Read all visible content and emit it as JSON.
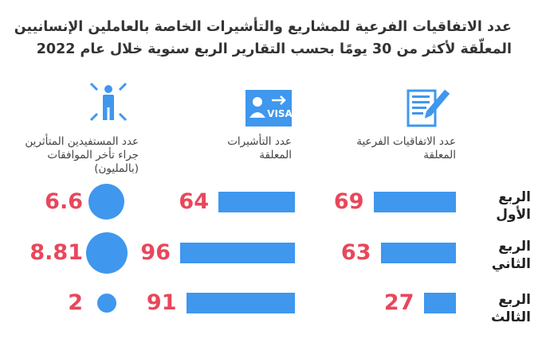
{
  "title": {
    "line1": "عدد الاتفاقيات الفرعية للمشاريع والتأشيرات الخاصة بالعاملين الإنسانيين",
    "line2": "المعلّقة لأكثر من 30 يومًا بحسب التقارير الربع سنوية خلال عام 2022"
  },
  "icons": {
    "agreements": "document-pen-icon",
    "visas": "visa-card-icon",
    "beneficiaries": "person-radiating-icon",
    "visa_text": "VISA"
  },
  "colors": {
    "bar": "#3f97ee",
    "value": "#e8475b"
  },
  "columns": {
    "agreements": {
      "line1": "عدد الاتفاقيات الفرعية",
      "line2": "المعلقة"
    },
    "visas": {
      "line1": "عدد التأشيرات",
      "line2": "المعلقة"
    },
    "beneficiaries": {
      "line1": "عدد المستفيدين المتأثرين",
      "line2": "جراء تأخر الموافقات",
      "line3": "(بالمليون)"
    }
  },
  "rows": [
    {
      "line1": "الربع",
      "line2": "الأول"
    },
    {
      "line1": "الربع",
      "line2": "الثاني"
    },
    {
      "line1": "الربع",
      "line2": "الثالث"
    }
  ],
  "chart_data": {
    "type": "bar",
    "categories": [
      "الربع الأول",
      "الربع الثاني",
      "الربع الثالث"
    ],
    "series": [
      {
        "name": "عدد الاتفاقيات الفرعية المعلقة",
        "values": [
          69,
          63,
          27
        ],
        "labels": [
          "69",
          "63",
          "27"
        ]
      },
      {
        "name": "عدد التأشيرات المعلقة",
        "values": [
          64,
          96,
          91
        ],
        "labels": [
          "64",
          "96",
          "91"
        ]
      },
      {
        "name": "عدد المستفيدين المتأثرين جراء تأخر الموافقات (بالمليون)",
        "values": [
          6.6,
          8.81,
          2
        ],
        "labels": [
          "6.6",
          "8.81",
          "2"
        ]
      }
    ]
  }
}
